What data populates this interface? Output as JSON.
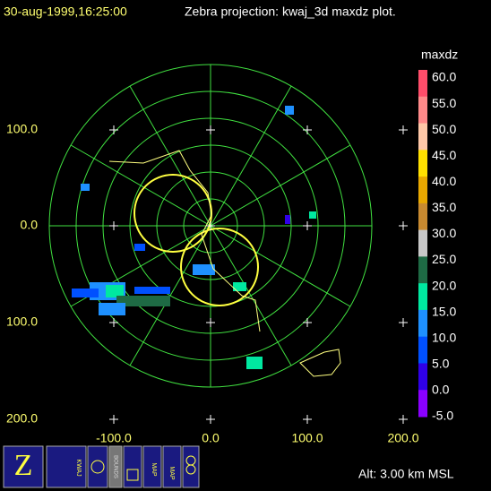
{
  "header": {
    "time": "30-aug-1999,16:25:00",
    "title": "Zebra projection: kwaj_3d maxdz plot."
  },
  "axes": {
    "y_labels": [
      "100.0",
      "0.0",
      "100.0",
      "200.0"
    ],
    "x_labels": [
      "-100.0",
      "0.0",
      "100.0",
      "200.0"
    ]
  },
  "colorbar": {
    "field": "maxdz",
    "labels": [
      "60.0",
      "55.0",
      "50.0",
      "45.0",
      "40.0",
      "35.0",
      "30.0",
      "25.0",
      "20.0",
      "15.0",
      "10.0",
      "5.0",
      "0.0",
      "-5.0"
    ],
    "colors": [
      "#ff4d6a",
      "#ff8a8a",
      "#ffc8a8",
      "#ffe000",
      "#e8a800",
      "#c88a30",
      "#c8c8c8",
      "#1e6a44",
      "#00e8a0",
      "#1e90ff",
      "#0050ff",
      "#3000e8",
      "#8a00ff"
    ]
  },
  "icons": {
    "z": "Z",
    "kwaj": "KWAJ",
    "bounds": "BOUNDS",
    "map1": "MAP",
    "map2": "MAP"
  },
  "footer": {
    "altitude": "Alt: 3.00 km MSL"
  }
}
